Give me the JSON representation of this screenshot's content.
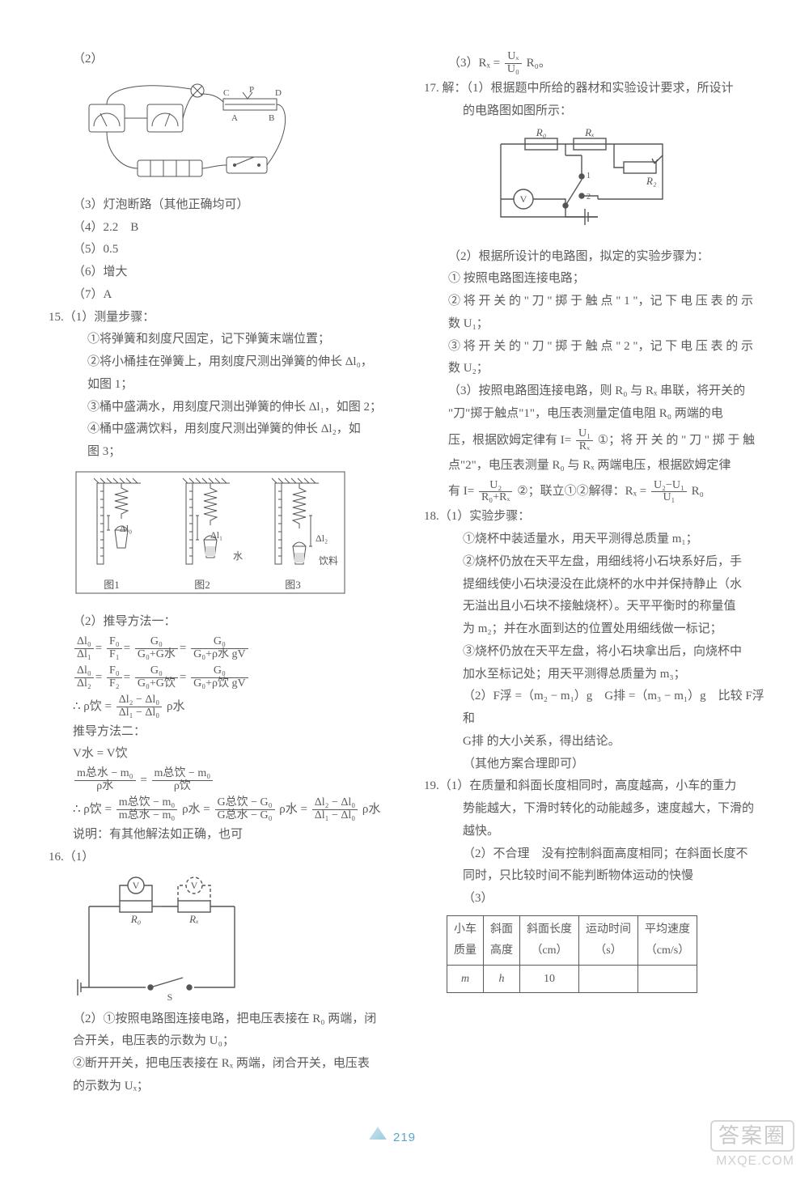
{
  "left": {
    "l2": "（2）",
    "fig_circuit_caption": "",
    "l3": "（3）灯泡断路（其他正确均可）",
    "l4": "（4）2.2　B",
    "l5": "（5）0.5",
    "l6": "（6）增大",
    "l7": "（7）A",
    "q15_head": "15.（1）测量步骤：",
    "q15_s1": "①将弹簧和刻度尺固定，记下弹簧末端位置；",
    "q15_s2a": "②将小桶挂在弹簧上，用刻度尺测出弹簧的伸长 Δl₀，",
    "q15_s2b": "如图 1；",
    "q15_s3": "③桶中盛满水，用刻度尺测出弹簧的伸长 Δl₁，如图 2；",
    "q15_s4a": "④桶中盛满饮料，用刻度尺测出弹簧的伸长 Δl₂，如",
    "q15_s4b": "图 3；",
    "fig3_c1": "图1",
    "fig3_c2": "图2",
    "fig3_c3": "图3",
    "fig3_lbl0": "Δl₀",
    "fig3_lbl1": "Δl₁",
    "fig3_lbl2": "Δl₂",
    "fig3_water": "水",
    "fig3_drink": "饮料",
    "q15_2_head": "（2）推导方法一：",
    "eq1": {
      "l": [
        "Δl₀",
        "Δl₁"
      ],
      "m": [
        "F₀",
        "F₁"
      ],
      "r1": [
        "G₀",
        "G₀+G水"
      ],
      "r2": [
        "G₀",
        "G₀+ρ水 gV"
      ]
    },
    "eq2": {
      "l": [
        "Δl₀",
        "Δl₂"
      ],
      "m": [
        "F₀",
        "F₂"
      ],
      "r1": [
        "G₀",
        "G₀+G饮"
      ],
      "r2": [
        "G₀",
        "G₀+ρ饮 gV"
      ]
    },
    "eq3_pref": "∴ ρ饮 =",
    "eq3": {
      "num": "Δl₂ − Δl₀",
      "den": "Δl₁ − Δl₀"
    },
    "eq3_suf": "ρ水",
    "method2": "推导方法二：",
    "eqV": "V水 = V饮",
    "eq4a": {
      "num": "m总水 − m₀",
      "den": "ρ水"
    },
    "eq4b": {
      "num": "m总饮 − m₀",
      "den": "ρ饮"
    },
    "eq5_pref": "∴ ρ饮 =",
    "eq5a": {
      "num": "m总饮 − m₀",
      "den": "m总水 − m₀"
    },
    "eq5mid1": "ρ水 =",
    "eq5b": {
      "num": "G总饮 − G₀",
      "den": "G总水 − G₀"
    },
    "eq5mid2": "ρ水 =",
    "eq5c": {
      "num": "Δl₂ − Δl₀",
      "den": "Δl₁ − Δl₀"
    },
    "eq5_suf": "ρ水",
    "note": "说明：有其他解法如正确，也可",
    "q16_head": "16.（1）",
    "q16_R0": "R₀",
    "q16_Rx": "Rₓ",
    "q16_V": "V",
    "q16_S": "S",
    "q16_2": "（2）①按照电路图连接电路，把电压表接在 R₀ 两端，闭"
  },
  "right": {
    "r1": "合开关，电压表的示数为 U₀；",
    "r2a": "②断开开关，把电压表接在 Rₓ 两端，闭合开关，电压表",
    "r2b": "的示数为 Uₓ；",
    "r3_pref": "（3）Rₓ =",
    "r3": {
      "num": "Uₓ",
      "den": "U₀"
    },
    "r3_suf": "R₀。",
    "q17_head": "17. 解：（1）根据题中所给的器材和实验设计要求，所设计",
    "q17_head2": "的电路图如图所示：",
    "fig17_R0": "R₀",
    "fig17_Rx": "Rₓ",
    "fig17_R2": "R₂",
    "fig17_V": "V",
    "q17_2": "（2）根据所设计的电路图，拟定的实验步骤为：",
    "q17_s1": "① 按照电路图连接电路；",
    "q17_s2a": "② 将 开 关 的 \" 刀 \" 掷 于 触 点 \" 1 \"，记 下 电 压 表 的 示",
    "q17_s2b": "数 U₁；",
    "q17_s3a": "③ 将 开 关 的 \" 刀 \" 掷 于 触 点 \" 2 \"，记 下 电 压 表 的 示",
    "q17_s3b": "数 U₂；",
    "q17_3a": "（3）按照电路图连接电路，则 R₀ 与 Rₓ 串联，将开关的",
    "q17_3b": "\"刀\"掷于触点\"1\"，电压表测量定值电阻 R₀ 两端的电",
    "q17_3c_pref": "压，根据欧姆定律有  I=",
    "q17_3c": {
      "num": "U₁",
      "den": "Rₓ"
    },
    "q17_3c_suf": "①；将 开 关 的 \" 刀 \" 掷 于 触",
    "q17_3d": "点\"2\"，电压表测量 R₀ 与 Rₓ 两端电压，根据欧姆定律",
    "q17_3e_pref": "有 I=",
    "q17_3e": {
      "num": "U₂",
      "den": "R₀+Rₓ"
    },
    "q17_3e_mid": "②；联立①②解得：Rₓ =",
    "q17_3e2": {
      "num": "U₂−U₁",
      "den": "U₁"
    },
    "q17_3e_suf": "R₀",
    "q18_head": "18.（1）实验步骤：",
    "q18_s1": "①烧杯中装适量水，用天平测得总质量 m₁；",
    "q18_s2a": "②烧杯仍放在天平左盘，用细线将小石块系好后，手",
    "q18_s2b": "提细线使小石块浸没在此烧杯的水中并保持静止（水",
    "q18_s2c": "无溢出且小石块不接触烧杯）。天平平衡时的称量值",
    "q18_s2d": "为 m₂；并在水面到达的位置处用细线做一标记；",
    "q18_s3a": "③烧杯仍放在天平左盘，将小石块拿出后，向烧杯中",
    "q18_s3b": "加水至标记处；用天平测得总质量为 m₃；",
    "q18_2a": "（2）F浮 =（m₂ − m₁）g　G排 =（m₃ − m₁）g　比较 F浮 和",
    "q18_2b": "G排 的大小关系，得出结论。",
    "q18_note": "（其他方案合理即可）",
    "q19_1a": "19.（1）在质量和斜面长度相同时，高度越高，小车的重力",
    "q19_1b": "势能越大，下滑时转化的动能越多，速度越大，下滑的",
    "q19_1c": "越快。",
    "q19_2a": "（2）不合理　没有控制斜面高度相同；在斜面长度不",
    "q19_2b": "同时，只比较时间不能判断物体运动的快慢",
    "q19_3": "（3）",
    "table": {
      "headers": [
        "小车\n质量",
        "斜面\n高度",
        "斜面长度\n（cm）",
        "运动时间\n（s）",
        "平均速度\n（cm/s）"
      ],
      "row": [
        "m",
        "h",
        "10",
        "",
        ""
      ]
    }
  },
  "pagenum": "219",
  "watermark": {
    "logo": "答案圈",
    "url": "MXQE.COM"
  },
  "colors": {
    "text": "#5a5a5a",
    "accent": "#5aa7c8",
    "watermark": "#cfcfcf"
  }
}
